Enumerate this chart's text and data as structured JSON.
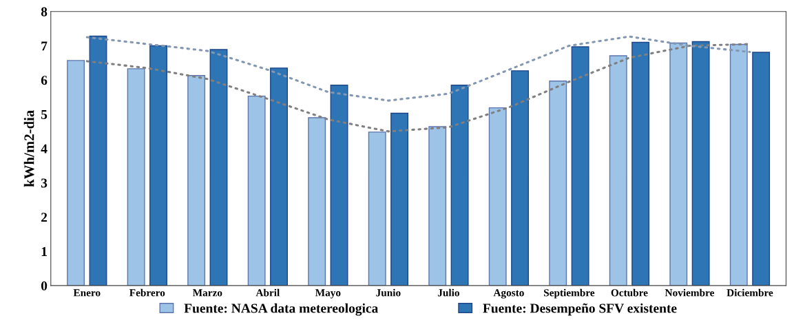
{
  "chart_data": {
    "type": "bar",
    "ylabel": "kWh/m2-dia",
    "categories": [
      "Enero",
      "Febrero",
      "Marzo",
      "Abril",
      "Mayo",
      "Junio",
      "Julio",
      "Agosto",
      "Septiembre",
      "Octubre",
      "Noviembre",
      "Diciembre"
    ],
    "series": [
      {
        "name": "Fuente: NASA data metereologica",
        "color": "#9dc3e6",
        "values": [
          6.57,
          6.33,
          6.13,
          5.53,
          4.9,
          4.48,
          4.64,
          5.19,
          5.97,
          6.71,
          7.08,
          7.04
        ]
      },
      {
        "name": "Fuente: Desempeño SFV existente",
        "color": "#2e75b6",
        "values": [
          7.28,
          7.0,
          6.89,
          6.35,
          5.85,
          5.03,
          5.85,
          6.27,
          6.97,
          7.1,
          7.12,
          6.81
        ]
      },
      {
        "type": "line",
        "color": "#7f7f7f",
        "line_style": "dotted",
        "values": [
          6.55,
          6.35,
          6.03,
          5.45,
          4.85,
          4.5,
          4.62,
          5.2,
          5.95,
          6.65,
          7.0,
          7.05
        ]
      },
      {
        "type": "line",
        "color": "#8497b0",
        "line_style": "dotted",
        "values": [
          7.25,
          7.05,
          6.85,
          6.3,
          5.65,
          5.4,
          5.6,
          6.3,
          7.0,
          7.27,
          7.0,
          6.82
        ]
      }
    ],
    "ylim": [
      0,
      8
    ],
    "yticks": [
      0,
      1,
      2,
      3,
      4,
      5,
      6,
      7,
      8
    ],
    "grid": false,
    "legend": "bottom"
  }
}
